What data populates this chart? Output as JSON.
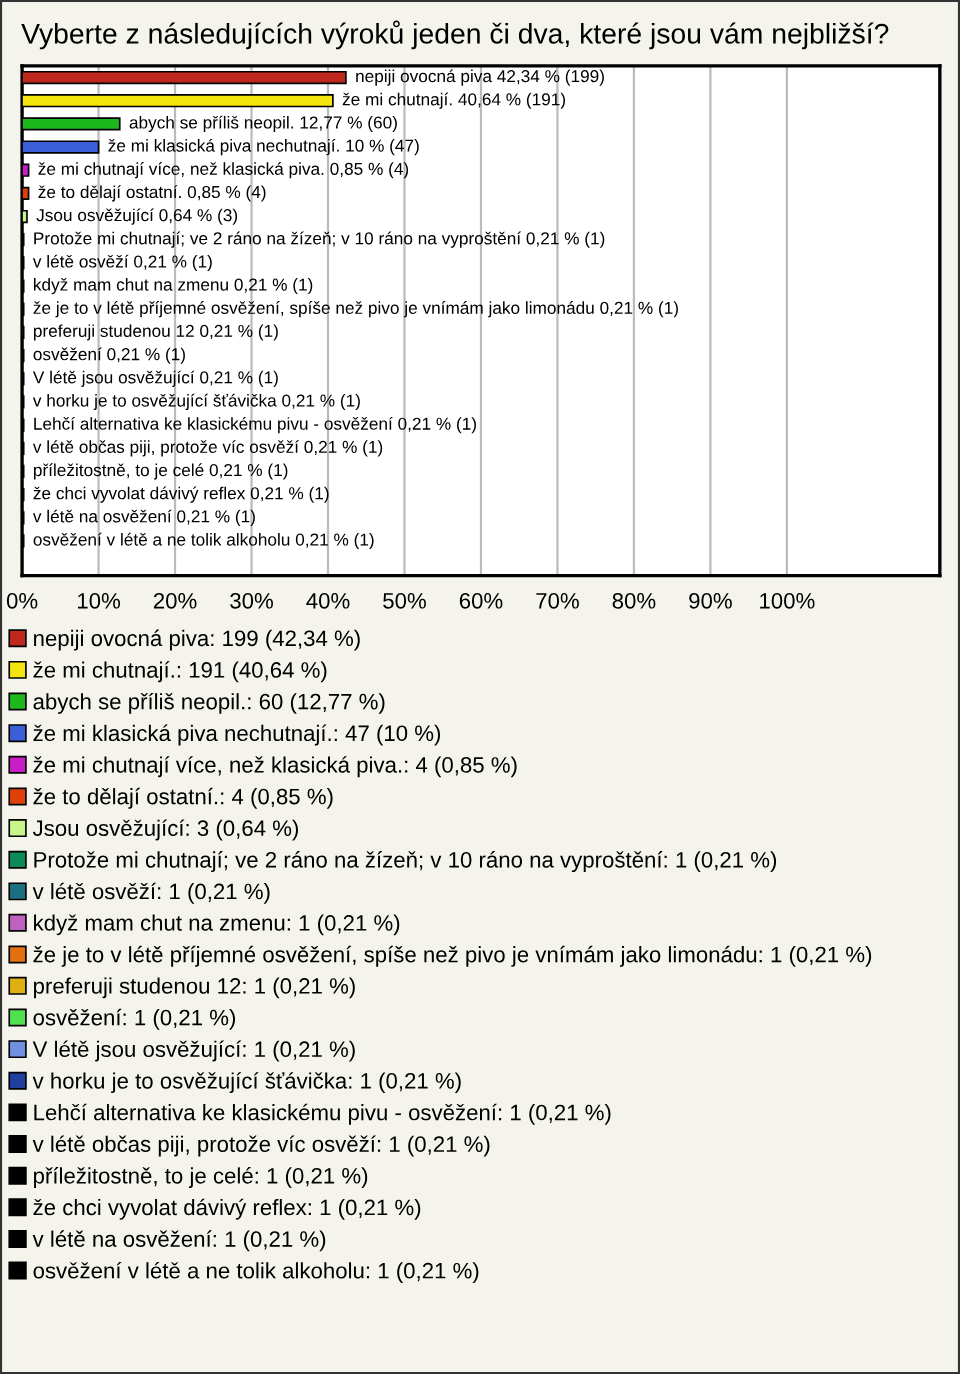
{
  "chart_data": {
    "type": "bar",
    "orientation": "horizontal",
    "title": "Vyberte z následujících výroků jeden či dva, které jsou vám nejbližší?",
    "categories": [
      null,
      null,
      null,
      null,
      null,
      null,
      null,
      null,
      null,
      null,
      null,
      null,
      null,
      null,
      null,
      null,
      null,
      null,
      null,
      null,
      null,
      null
    ],
    "xlim": [
      0,
      120
    ],
    "xticks": [
      {
        "value": 0,
        "label": "0%"
      },
      {
        "value": 10,
        "label": "10%"
      },
      {
        "value": 20,
        "label": "20%"
      },
      {
        "value": 30,
        "label": "30%"
      },
      {
        "value": 40,
        "label": "40%"
      },
      {
        "value": 50,
        "label": "50%"
      },
      {
        "value": 60,
        "label": "60%"
      },
      {
        "value": 70,
        "label": "70%"
      },
      {
        "value": 80,
        "label": "80%"
      },
      {
        "value": 90,
        "label": "90%"
      },
      {
        "value": 100,
        "label": "100%"
      }
    ],
    "grid": "x",
    "tick_labels": "x",
    "legend": "bottom",
    "series": [
      {
        "name": "nepiji ovocná piva: 199 (42,34 %)",
        "color": "#c0281e",
        "values": [
          42.34,
          null,
          null,
          null,
          null,
          null,
          null,
          null,
          null,
          null,
          null,
          null,
          null,
          null,
          null,
          null,
          null,
          null,
          null,
          null,
          null,
          null
        ],
        "value_labels": [
          "nepiji ovocná piva 42,34 % (199)",
          null,
          null,
          null,
          null,
          null,
          null,
          null,
          null,
          null,
          null,
          null,
          null,
          null,
          null,
          null,
          null,
          null,
          null,
          null,
          null,
          null
        ]
      },
      {
        "name": "že mi chutnají.: 191 (40,64 %)",
        "color": "#f5e50f",
        "values": [
          null,
          40.64,
          null,
          null,
          null,
          null,
          null,
          null,
          null,
          null,
          null,
          null,
          null,
          null,
          null,
          null,
          null,
          null,
          null,
          null,
          null,
          null
        ],
        "value_labels": [
          null,
          "že mi chutnají. 40,64 % (191)",
          null,
          null,
          null,
          null,
          null,
          null,
          null,
          null,
          null,
          null,
          null,
          null,
          null,
          null,
          null,
          null,
          null,
          null,
          null,
          null
        ]
      },
      {
        "name": "abych se příliš neopil.: 60 (12,77 %)",
        "color": "#1cb81c",
        "values": [
          null,
          null,
          12.77,
          null,
          null,
          null,
          null,
          null,
          null,
          null,
          null,
          null,
          null,
          null,
          null,
          null,
          null,
          null,
          null,
          null,
          null,
          null
        ],
        "value_labels": [
          null,
          null,
          "abych se příliš neopil. 12,77 % (60)",
          null,
          null,
          null,
          null,
          null,
          null,
          null,
          null,
          null,
          null,
          null,
          null,
          null,
          null,
          null,
          null,
          null,
          null,
          null
        ]
      },
      {
        "name": "že mi klasická piva nechutnají.: 47 (10 %)",
        "color": "#3a5fd9",
        "values": [
          null,
          null,
          null,
          10,
          null,
          null,
          null,
          null,
          null,
          null,
          null,
          null,
          null,
          null,
          null,
          null,
          null,
          null,
          null,
          null,
          null,
          null
        ],
        "value_labels": [
          null,
          null,
          null,
          "že mi klasická piva nechutnají. 10 % (47)",
          null,
          null,
          null,
          null,
          null,
          null,
          null,
          null,
          null,
          null,
          null,
          null,
          null,
          null,
          null,
          null,
          null,
          null
        ]
      },
      {
        "name": "že mi chutnají více, než klasická piva.: 4 (0,85 %)",
        "color": "#c81ec8",
        "values": [
          null,
          null,
          null,
          null,
          0.85,
          null,
          null,
          null,
          null,
          null,
          null,
          null,
          null,
          null,
          null,
          null,
          null,
          null,
          null,
          null,
          null,
          null
        ],
        "value_labels": [
          null,
          null,
          null,
          null,
          "že mi chutnají více, než klasická piva. 0,85 % (4)",
          null,
          null,
          null,
          null,
          null,
          null,
          null,
          null,
          null,
          null,
          null,
          null,
          null,
          null,
          null,
          null,
          null
        ]
      },
      {
        "name": "že to dělají ostatní.: 4 (0,85 %)",
        "color": "#e0400a",
        "values": [
          null,
          null,
          null,
          null,
          null,
          0.85,
          null,
          null,
          null,
          null,
          null,
          null,
          null,
          null,
          null,
          null,
          null,
          null,
          null,
          null,
          null,
          null
        ],
        "value_labels": [
          null,
          null,
          null,
          null,
          null,
          "že to dělají ostatní. 0,85 % (4)",
          null,
          null,
          null,
          null,
          null,
          null,
          null,
          null,
          null,
          null,
          null,
          null,
          null,
          null,
          null,
          null
        ]
      },
      {
        "name": "Jsou osvěžující: 3 (0,64 %)",
        "color": "#c8f58a",
        "values": [
          null,
          null,
          null,
          null,
          null,
          null,
          0.64,
          null,
          null,
          null,
          null,
          null,
          null,
          null,
          null,
          null,
          null,
          null,
          null,
          null,
          null,
          null
        ],
        "value_labels": [
          null,
          null,
          null,
          null,
          null,
          null,
          "Jsou osvěžující 0,64 % (3)",
          null,
          null,
          null,
          null,
          null,
          null,
          null,
          null,
          null,
          null,
          null,
          null,
          null,
          null,
          null
        ]
      },
      {
        "name": "Protože mi chutnají; ve 2 ráno na žízeň; v 10 ráno na vyproštění: 1 (0,21 %)",
        "color": "#0c8a5a",
        "values": [
          null,
          null,
          null,
          null,
          null,
          null,
          null,
          0.21,
          null,
          null,
          null,
          null,
          null,
          null,
          null,
          null,
          null,
          null,
          null,
          null,
          null,
          null
        ],
        "value_labels": [
          null,
          null,
          null,
          null,
          null,
          null,
          null,
          "Protože mi chutnají; ve 2 ráno na žízeň; v 10 ráno na vyproštění 0,21 % (1)",
          null,
          null,
          null,
          null,
          null,
          null,
          null,
          null,
          null,
          null,
          null,
          null,
          null,
          null
        ]
      },
      {
        "name": "v létě osvěží: 1 (0,21 %)",
        "color": "#1a7080",
        "values": [
          null,
          null,
          null,
          null,
          null,
          null,
          null,
          null,
          0.21,
          null,
          null,
          null,
          null,
          null,
          null,
          null,
          null,
          null,
          null,
          null,
          null,
          null
        ],
        "value_labels": [
          null,
          null,
          null,
          null,
          null,
          null,
          null,
          null,
          "v létě osvěží 0,21 % (1)",
          null,
          null,
          null,
          null,
          null,
          null,
          null,
          null,
          null,
          null,
          null,
          null,
          null
        ]
      },
      {
        "name": "když mam chut na zmenu: 1 (0,21 %)",
        "color": "#c060c0",
        "values": [
          null,
          null,
          null,
          null,
          null,
          null,
          null,
          null,
          null,
          0.21,
          null,
          null,
          null,
          null,
          null,
          null,
          null,
          null,
          null,
          null,
          null,
          null
        ],
        "value_labels": [
          null,
          null,
          null,
          null,
          null,
          null,
          null,
          null,
          null,
          "když mam chut na zmenu 0,21 % (1)",
          null,
          null,
          null,
          null,
          null,
          null,
          null,
          null,
          null,
          null,
          null,
          null
        ]
      },
      {
        "name": "že je to v létě příjemné osvěžení, spíše než pivo je vnímám jako limonádu: 1 (0,21 %)",
        "color": "#e07010",
        "values": [
          null,
          null,
          null,
          null,
          null,
          null,
          null,
          null,
          null,
          null,
          0.21,
          null,
          null,
          null,
          null,
          null,
          null,
          null,
          null,
          null,
          null,
          null
        ],
        "value_labels": [
          null,
          null,
          null,
          null,
          null,
          null,
          null,
          null,
          null,
          null,
          "že je to v létě příjemné osvěžení, spíše než pivo je vnímám jako limonádu 0,21 % (1)",
          null,
          null,
          null,
          null,
          null,
          null,
          null,
          null,
          null,
          null,
          null
        ]
      },
      {
        "name": "preferuji studenou 12: 1 (0,21 %)",
        "color": "#e0b010",
        "values": [
          null,
          null,
          null,
          null,
          null,
          null,
          null,
          null,
          null,
          null,
          null,
          0.21,
          null,
          null,
          null,
          null,
          null,
          null,
          null,
          null,
          null,
          null
        ],
        "value_labels": [
          null,
          null,
          null,
          null,
          null,
          null,
          null,
          null,
          null,
          null,
          null,
          "preferuji studenou 12 0,21 % (1)",
          null,
          null,
          null,
          null,
          null,
          null,
          null,
          null,
          null,
          null
        ]
      },
      {
        "name": "osvěžení: 1 (0,21 %)",
        "color": "#50e050",
        "values": [
          null,
          null,
          null,
          null,
          null,
          null,
          null,
          null,
          null,
          null,
          null,
          null,
          0.21,
          null,
          null,
          null,
          null,
          null,
          null,
          null,
          null,
          null
        ],
        "value_labels": [
          null,
          null,
          null,
          null,
          null,
          null,
          null,
          null,
          null,
          null,
          null,
          null,
          "osvěžení 0,21 % (1)",
          null,
          null,
          null,
          null,
          null,
          null,
          null,
          null,
          null
        ]
      },
      {
        "name": "V létě jsou osvěžující: 1 (0,21 %)",
        "color": "#7090e0",
        "values": [
          null,
          null,
          null,
          null,
          null,
          null,
          null,
          null,
          null,
          null,
          null,
          null,
          null,
          0.21,
          null,
          null,
          null,
          null,
          null,
          null,
          null,
          null
        ],
        "value_labels": [
          null,
          null,
          null,
          null,
          null,
          null,
          null,
          null,
          null,
          null,
          null,
          null,
          null,
          "V létě jsou osvěžující 0,21 % (1)",
          null,
          null,
          null,
          null,
          null,
          null,
          null,
          null
        ]
      },
      {
        "name": "v horku je to osvěžující šťávička: 1 (0,21 %)",
        "color": "#2040a0",
        "values": [
          null,
          null,
          null,
          null,
          null,
          null,
          null,
          null,
          null,
          null,
          null,
          null,
          null,
          null,
          0.21,
          null,
          null,
          null,
          null,
          null,
          null,
          null
        ],
        "value_labels": [
          null,
          null,
          null,
          null,
          null,
          null,
          null,
          null,
          null,
          null,
          null,
          null,
          null,
          null,
          "v horku je to osvěžující šťávička 0,21 % (1)",
          null,
          null,
          null,
          null,
          null,
          null,
          null
        ]
      },
      {
        "name": "Lehčí alternativa ke klasickému pivu - osvěžení: 1 (0,21 %)",
        "color": "#000000",
        "values": [
          null,
          null,
          null,
          null,
          null,
          null,
          null,
          null,
          null,
          null,
          null,
          null,
          null,
          null,
          null,
          0.21,
          null,
          null,
          null,
          null,
          null,
          null
        ],
        "value_labels": [
          null,
          null,
          null,
          null,
          null,
          null,
          null,
          null,
          null,
          null,
          null,
          null,
          null,
          null,
          null,
          "Lehčí alternativa ke klasickému pivu - osvěžení 0,21 % (1)",
          null,
          null,
          null,
          null,
          null,
          null
        ]
      },
      {
        "name": "v létě občas piji, protože víc osvěží: 1 (0,21 %)",
        "color": "#000000",
        "values": [
          null,
          null,
          null,
          null,
          null,
          null,
          null,
          null,
          null,
          null,
          null,
          null,
          null,
          null,
          null,
          null,
          0.21,
          null,
          null,
          null,
          null,
          null
        ],
        "value_labels": [
          null,
          null,
          null,
          null,
          null,
          null,
          null,
          null,
          null,
          null,
          null,
          null,
          null,
          null,
          null,
          null,
          "v létě občas piji, protože víc osvěží 0,21 % (1)",
          null,
          null,
          null,
          null,
          null
        ]
      },
      {
        "name": "příležitostně, to je celé: 1 (0,21 %)",
        "color": "#000000",
        "values": [
          null,
          null,
          null,
          null,
          null,
          null,
          null,
          null,
          null,
          null,
          null,
          null,
          null,
          null,
          null,
          null,
          null,
          0.21,
          null,
          null,
          null,
          null
        ],
        "value_labels": [
          null,
          null,
          null,
          null,
          null,
          null,
          null,
          null,
          null,
          null,
          null,
          null,
          null,
          null,
          null,
          null,
          null,
          "příležitostně, to je celé 0,21 % (1)",
          null,
          null,
          null,
          null
        ]
      },
      {
        "name": "že chci vyvolat dávivý reflex: 1 (0,21 %)",
        "color": "#000000",
        "values": [
          null,
          null,
          null,
          null,
          null,
          null,
          null,
          null,
          null,
          null,
          null,
          null,
          null,
          null,
          null,
          null,
          null,
          null,
          0.21,
          null,
          null,
          null
        ],
        "value_labels": [
          null,
          null,
          null,
          null,
          null,
          null,
          null,
          null,
          null,
          null,
          null,
          null,
          null,
          null,
          null,
          null,
          null,
          null,
          "že chci vyvolat dávivý reflex 0,21 % (1)",
          null,
          null,
          null
        ]
      },
      {
        "name": "v létě na osvěžení: 1 (0,21 %)",
        "color": "#000000",
        "values": [
          null,
          null,
          null,
          null,
          null,
          null,
          null,
          null,
          null,
          null,
          null,
          null,
          null,
          null,
          null,
          null,
          null,
          null,
          null,
          0.21,
          null,
          null
        ],
        "value_labels": [
          null,
          null,
          null,
          null,
          null,
          null,
          null,
          null,
          null,
          null,
          null,
          null,
          null,
          null,
          null,
          null,
          null,
          null,
          null,
          "v létě na osvěžení 0,21 % (1)",
          null,
          null
        ]
      },
      {
        "name": "osvěžení v létě a ne tolik alkoholu: 1 (0,21 %)",
        "color": "#000000",
        "values": [
          null,
          null,
          null,
          null,
          null,
          null,
          null,
          null,
          null,
          null,
          null,
          null,
          null,
          null,
          null,
          null,
          null,
          null,
          null,
          null,
          0.21,
          null
        ],
        "value_labels": [
          null,
          null,
          null,
          null,
          null,
          null,
          null,
          null,
          null,
          null,
          null,
          null,
          null,
          null,
          null,
          null,
          null,
          null,
          null,
          null,
          "osvěžení v létě a ne tolik alkoholu 0,21 % (1)",
          null
        ]
      }
    ]
  }
}
